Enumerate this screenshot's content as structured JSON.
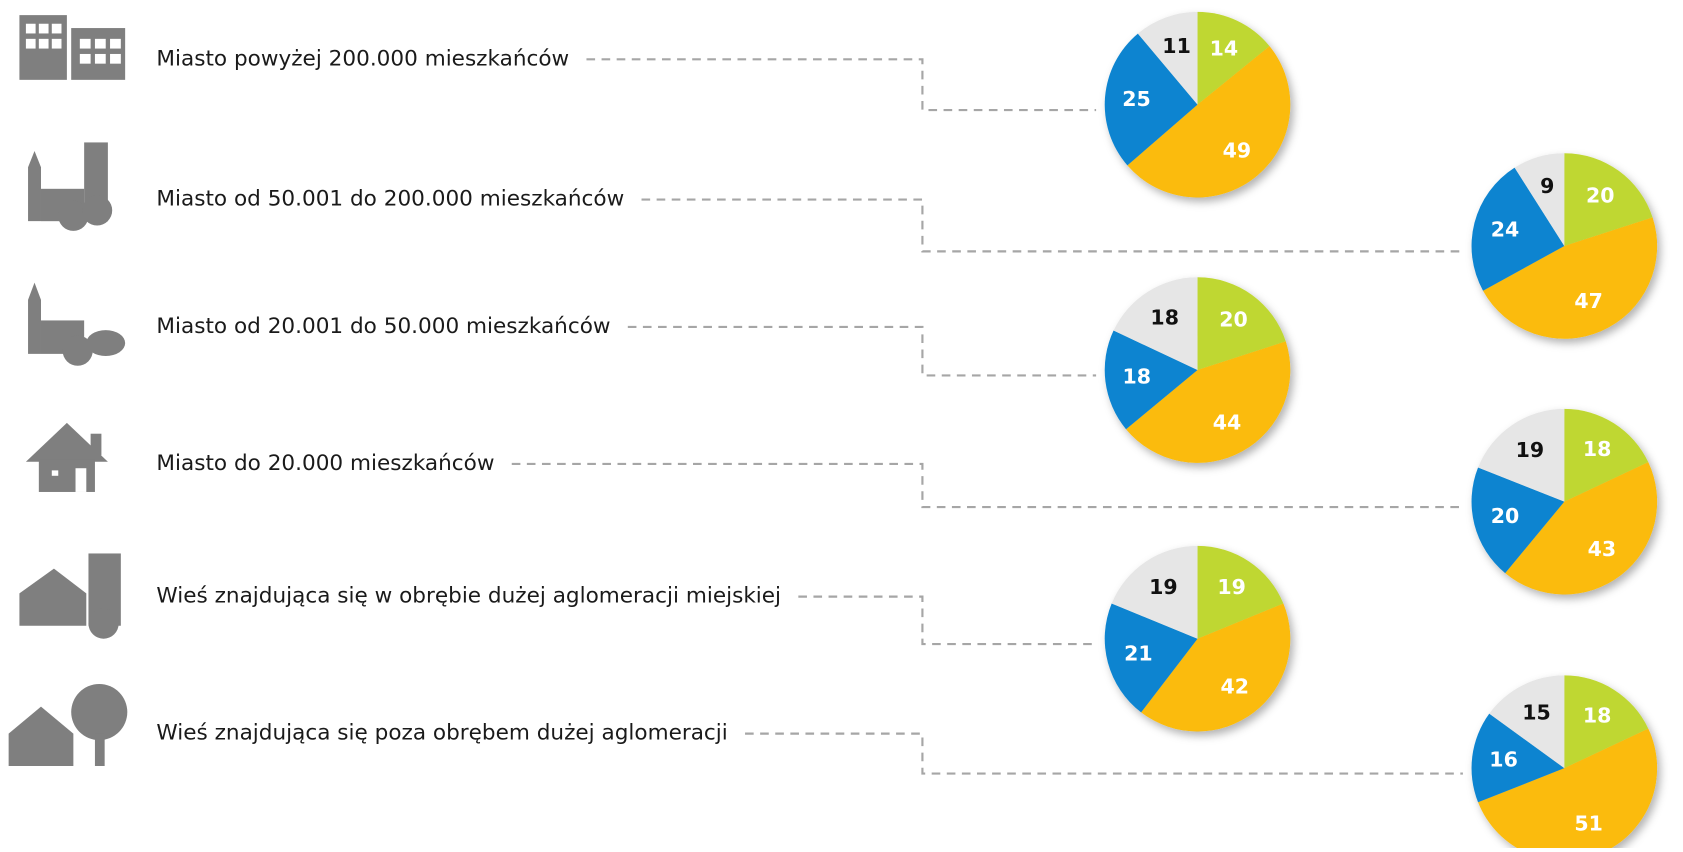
{
  "chart_data": [
    {
      "type": "pie",
      "label": "Miasto powyżej 200.000 mieszkańców",
      "values": [
        14,
        49,
        25,
        11
      ],
      "colors": [
        "#bfd730",
        "#fbbb07",
        "#0b84d0",
        "#e6e6e6"
      ]
    },
    {
      "type": "pie",
      "label": "Miasto od 50.001 do 200.000 mieszkańców",
      "values": [
        20,
        47,
        24,
        9
      ],
      "colors": [
        "#bfd730",
        "#fbbb07",
        "#0b84d0",
        "#e6e6e6"
      ]
    },
    {
      "type": "pie",
      "label": "Miasto od 20.001 do 50.000 mieszkańców",
      "values": [
        20,
        44,
        18,
        18
      ],
      "colors": [
        "#bfd730",
        "#fbbb07",
        "#0b84d0",
        "#e6e6e6"
      ]
    },
    {
      "type": "pie",
      "label": "Miasto do 20.000 mieszkańców",
      "values": [
        18,
        43,
        20,
        19
      ],
      "colors": [
        "#bfd730",
        "#fbbb07",
        "#0b84d0",
        "#e6e6e6"
      ]
    },
    {
      "type": "pie",
      "label": "Wieś znajdująca się w obrębie dużej aglomeracji miejskiej",
      "values": [
        19,
        42,
        21,
        19
      ],
      "colors": [
        "#bfd730",
        "#fbbb07",
        "#0b84d0",
        "#e6e6e6"
      ]
    },
    {
      "type": "pie",
      "label": "Wieś znajdująca się poza obrębem dużej aglomeracji",
      "values": [
        18,
        51,
        16,
        15
      ],
      "colors": [
        "#bfd730",
        "#fbbb07",
        "#0b84d0",
        "#e6e6e6"
      ]
    }
  ]
}
